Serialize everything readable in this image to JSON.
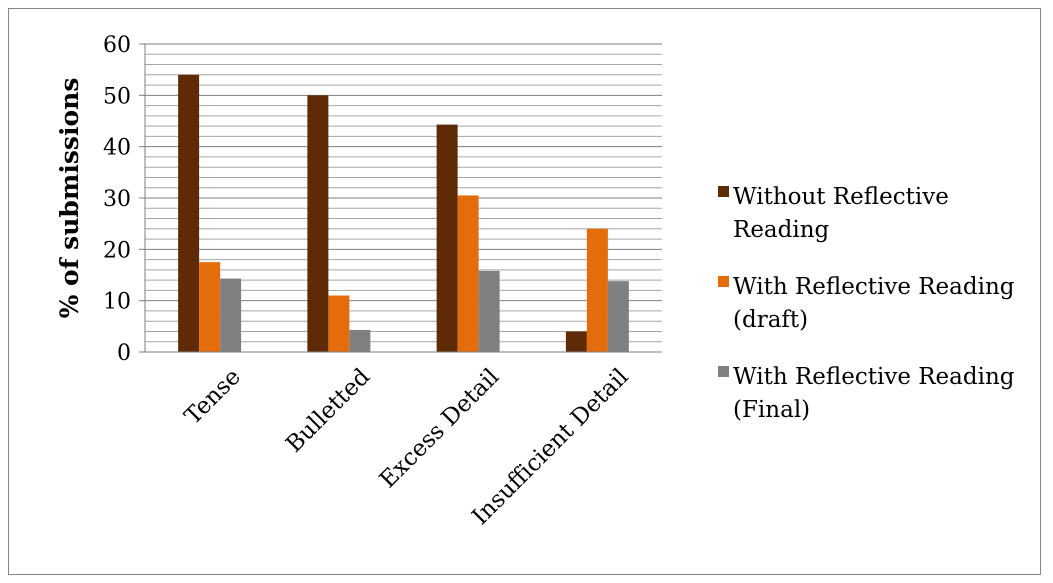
{
  "chart_data": {
    "type": "bar",
    "title": "",
    "xlabel": "",
    "ylabel": "% of submissions",
    "ylim": [
      0,
      60
    ],
    "major_ticks": [
      0,
      10,
      20,
      30,
      40,
      50,
      60
    ],
    "minor_step": 2,
    "grid": true,
    "legend_position": "right",
    "categories": [
      "Tense",
      "Bulletted",
      "Excess Detail",
      "Insufficient Detail"
    ],
    "series": [
      {
        "name": "Without Reflective Reading",
        "legend_lines": [
          "Without Reflective",
          "Reading"
        ],
        "color": "#5f2b06",
        "values": [
          54,
          50,
          44.3,
          4
        ]
      },
      {
        "name": "With Reflective Reading (draft)",
        "legend_lines": [
          "With Reflective Reading",
          "(draft)"
        ],
        "color": "#e46c0a",
        "values": [
          17.5,
          11,
          30.5,
          24
        ]
      },
      {
        "name": "With Reflective Reading (Final)",
        "legend_lines": [
          "With Reflective Reading",
          "(Final)"
        ],
        "color": "#808080",
        "values": [
          14.3,
          4.3,
          15.8,
          13.8
        ]
      }
    ]
  }
}
